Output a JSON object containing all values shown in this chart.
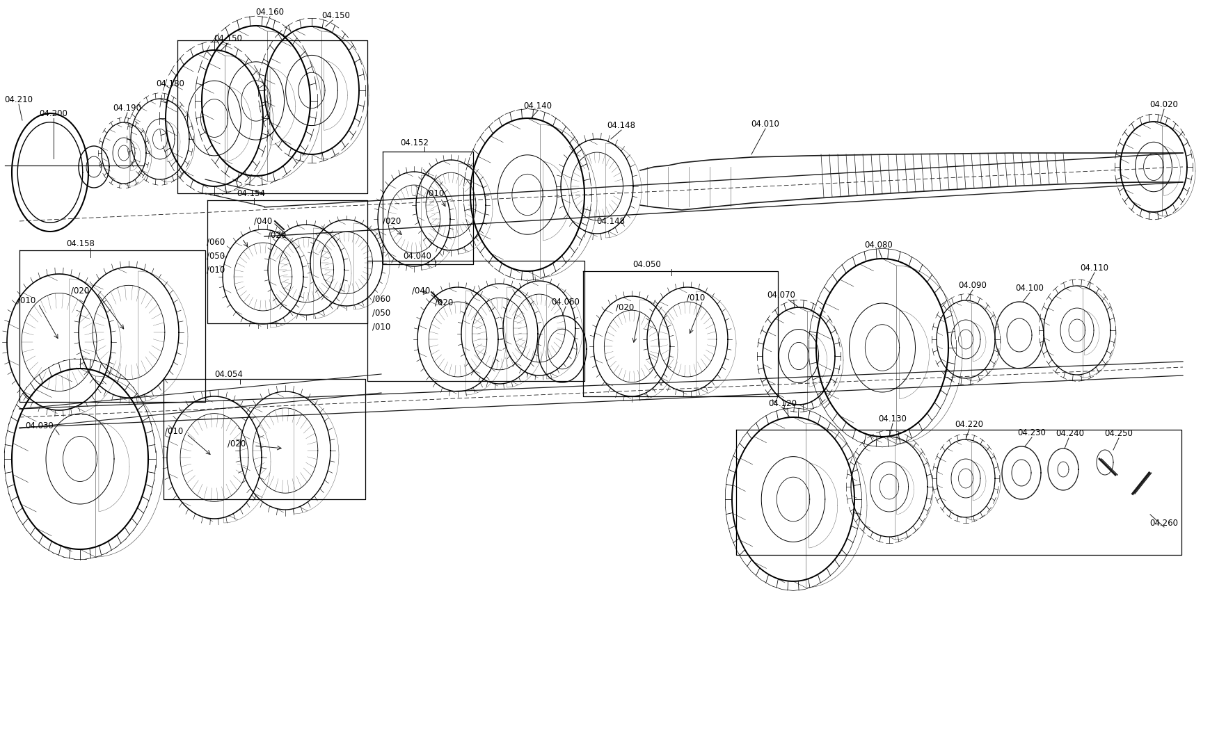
{
  "bg_color": "#ffffff",
  "line_color": "#1a1a1a",
  "fig_width": 17.4,
  "fig_height": 10.7,
  "dpi": 100,
  "font_size": 8.5
}
